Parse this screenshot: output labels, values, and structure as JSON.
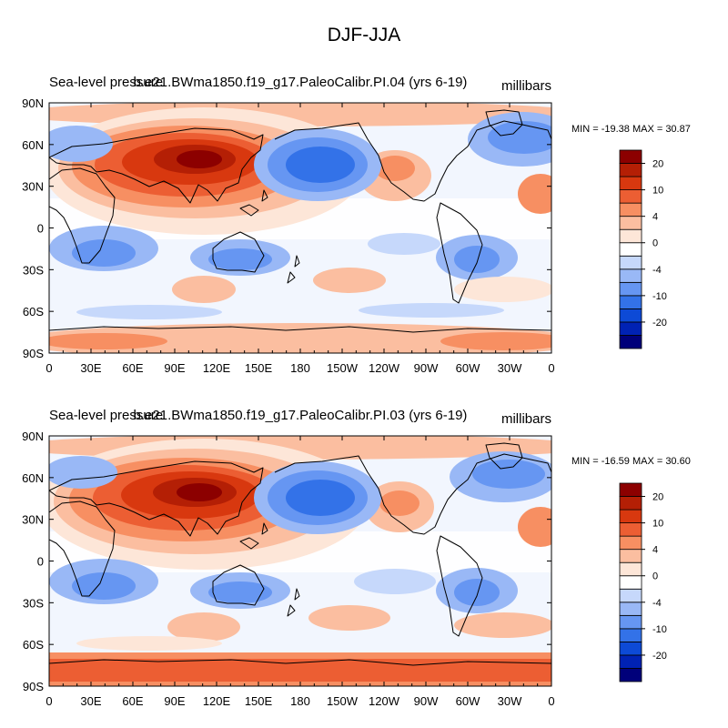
{
  "suptitle": "DJF-JJA",
  "palette": [
    "#00007a",
    "#0022b4",
    "#0d4ad6",
    "#3372e8",
    "#6696f2",
    "#99b8f6",
    "#c6d8fb",
    "#ffffff",
    "#fde6d8",
    "#fbbea0",
    "#f78f62",
    "#ec5e33",
    "#d8380f",
    "#b41f05",
    "#8c0000"
  ],
  "coast_color": "#000000",
  "xticks": [
    "0",
    "30E",
    "60E",
    "90E",
    "120E",
    "150E",
    "180",
    "150W",
    "120W",
    "90W",
    "60W",
    "30W",
    "0"
  ],
  "yticks": [
    "90N",
    "60N",
    "30N",
    "0",
    "30S",
    "60S",
    "90S"
  ],
  "colorbar_labels": [
    "20",
    "10",
    "4",
    "0",
    "-4",
    "-10",
    "-20"
  ],
  "colorbar_levels": [
    -25,
    -20,
    -15,
    -10,
    -6,
    -4,
    -2,
    0,
    2,
    4,
    6,
    10,
    15,
    20,
    25
  ],
  "panels": [
    {
      "title_left": "Sea-level pressure",
      "title_center": "b.e21.BWma1850.f19_g17.PaleoCalibr.PI.04 (yrs 6-19)",
      "title_right": "millibars",
      "stats": "MIN = -19.38 MAX =  30.87",
      "min": -19.38,
      "max": 30.87
    },
    {
      "title_left": "Sea-level pressure",
      "title_center": "b.e21.BWma1850.f19_g17.PaleoCalibr.PI.03 (yrs 6-19)",
      "title_right": "millibars",
      "stats": "MIN = -16.59 MAX =  30.60",
      "min": -16.59,
      "max": 30.6
    }
  ]
}
